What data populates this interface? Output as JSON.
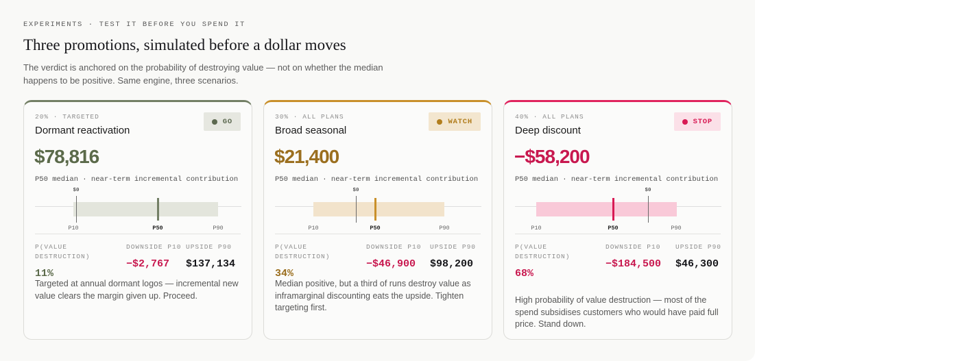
{
  "header": {
    "eyebrow": "EXPERIMENTS · TEST IT BEFORE YOU SPEND IT",
    "title": "Three promotions, simulated before a dollar moves",
    "subtitle": "The verdict is anchored on the probability of destroying value — not on whether the median happens to be positive. Same engine, three scenarios."
  },
  "cards": [
    {
      "meta": "20% · TARGETED",
      "title": "Dormant reactivation",
      "badge": "GO",
      "median_value": "$78,816",
      "median_caption": "P50 median · near-term incremental contribution",
      "range": {
        "zero_label": "$0",
        "p10_label": "P10",
        "p50_label": "P50",
        "p90_label": "P90"
      },
      "stats": {
        "pvd_label": "P(VALUE DESTRUCTION)",
        "pvd_value": "11%",
        "down_label": "DOWNSIDE P10",
        "down_value": "−$2,767",
        "up_label": "UPSIDE P90",
        "up_value": "$137,134"
      },
      "description": "Targeted at annual dormant logos — incremental new value clears the margin given up. Proceed.",
      "colors": {
        "accent": "#737f65",
        "value": "#5b6a4a",
        "badge_bg": "#e6e7e0",
        "badge_fg": "#5d6950",
        "band": "#e3e5dc",
        "marker": "#737f65",
        "pvd": "#5b6a4a"
      }
    },
    {
      "meta": "30% · ALL PLANS",
      "title": "Broad seasonal",
      "badge": "WATCH",
      "median_value": "$21,400",
      "median_caption": "P50 median · near-term incremental contribution",
      "range": {
        "zero_label": "$0",
        "p10_label": "P10",
        "p50_label": "P50",
        "p90_label": "P90"
      },
      "stats": {
        "pvd_label": "P(VALUE DESTRUCTION)",
        "pvd_value": "34%",
        "down_label": "DOWNSIDE P10",
        "down_value": "−$46,900",
        "up_label": "UPSIDE P90",
        "up_value": "$98,200"
      },
      "description": "Median positive, but a third of runs destroy value as inframarginal discounting eats the upside. Tighten targeting first.",
      "colors": {
        "accent": "#c9902b",
        "value": "#9b6f1f",
        "badge_bg": "#f3e6cf",
        "badge_fg": "#b27e1e",
        "band": "#f2e3cb",
        "marker": "#c9902b",
        "pvd": "#9b6f1f"
      }
    },
    {
      "meta": "40% · ALL PLANS",
      "title": "Deep discount",
      "badge": "STOP",
      "median_value": "−$58,200",
      "median_caption": "P50 median · near-term incremental contribution",
      "range": {
        "zero_label": "$0",
        "p10_label": "P10",
        "p50_label": "P50",
        "p90_label": "P90"
      },
      "stats": {
        "pvd_label": "P(VALUE DESTRUCTION)",
        "pvd_value": "68%",
        "down_label": "DOWNSIDE P10",
        "down_value": "−$184,500",
        "up_label": "UPSIDE P90",
        "up_value": "$46,300"
      },
      "description": "High probability of value destruction — most of the spend subsidises customers who would have paid full price. Stand down.",
      "colors": {
        "accent": "#e0245e",
        "value": "#c8184f",
        "badge_bg": "#fbe0e8",
        "badge_fg": "#d81b55",
        "band": "#f9c9d8",
        "marker": "#d81b55",
        "pvd": "#c8184f"
      }
    }
  ],
  "colors": {
    "negative": "#c8184f",
    "text_dark": "#16161a"
  }
}
